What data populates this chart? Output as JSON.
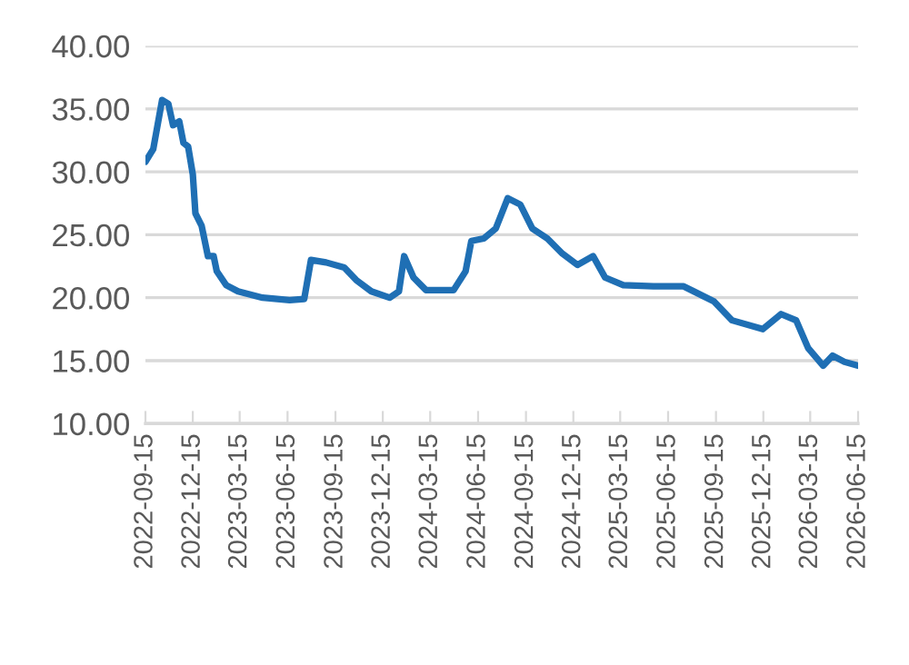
{
  "chart_data": {
    "type": "line",
    "x": [
      "2022-09-15",
      "2022-09-30",
      "2022-10-17",
      "2022-10-29",
      "2022-11-07",
      "2022-11-19",
      "2022-11-27",
      "2022-12-06",
      "2022-12-15",
      "2022-12-20",
      "2023-01-01",
      "2023-01-13",
      "2023-01-24",
      "2023-01-30",
      "2023-02-17",
      "2023-03-12",
      "2023-04-28",
      "2023-06-19",
      "2023-07-17",
      "2023-07-30",
      "2023-08-28",
      "2023-10-02",
      "2023-10-25",
      "2023-11-23",
      "2023-12-28",
      "2024-01-15",
      "2024-01-25",
      "2024-02-12",
      "2024-03-07",
      "2024-04-29",
      "2024-05-22",
      "2024-06-02",
      "2024-06-26",
      "2024-07-19",
      "2024-08-11",
      "2024-09-04",
      "2024-09-27",
      "2024-10-26",
      "2024-11-24",
      "2024-12-23",
      "2025-01-22",
      "2025-02-14",
      "2025-03-21",
      "2025-05-18",
      "2025-07-15",
      "2025-09-11",
      "2025-10-16",
      "2025-12-14",
      "2026-01-18",
      "2026-02-16",
      "2026-03-11",
      "2026-04-09",
      "2026-04-27",
      "2026-05-20",
      "2026-06-15"
    ],
    "series": [
      {
        "color": "#1f6fb4",
        "values": [
          30.8,
          31.8,
          35.7,
          35.4,
          33.7,
          34.0,
          32.3,
          32.0,
          29.8,
          26.7,
          25.7,
          23.3,
          23.3,
          22.1,
          21.0,
          20.5,
          20.0,
          19.8,
          19.9,
          23.0,
          22.8,
          22.4,
          21.4,
          20.5,
          20.0,
          20.5,
          23.3,
          21.6,
          20.6,
          20.6,
          22.1,
          24.5,
          24.7,
          25.5,
          27.9,
          27.4,
          25.5,
          24.7,
          23.5,
          22.6,
          23.3,
          21.6,
          21.0,
          20.9,
          20.9,
          19.7,
          18.2,
          17.5,
          18.7,
          18.2,
          16.0,
          14.6,
          15.4,
          14.9,
          14.6
        ]
      }
    ],
    "xlim": [
      "2022-09-15",
      "2026-06-15"
    ],
    "xticks": [
      "2022-09-15",
      "2022-12-15",
      "2023-03-15",
      "2023-06-15",
      "2023-09-15",
      "2023-12-15",
      "2024-03-15",
      "2024-06-15",
      "2024-09-15",
      "2024-12-15",
      "2025-03-15",
      "2025-06-15",
      "2025-09-15",
      "2025-12-15",
      "2026-03-15",
      "2026-06-15"
    ],
    "ylim": [
      10,
      40
    ],
    "yticks": [
      {
        "value": 10,
        "label": "10.00"
      },
      {
        "value": 15,
        "label": "15.00"
      },
      {
        "value": 20,
        "label": "20.00"
      },
      {
        "value": 25,
        "label": "25.00"
      },
      {
        "value": 30,
        "label": "30.00"
      },
      {
        "value": 35,
        "label": "35.00"
      },
      {
        "value": 40,
        "label": "40.00"
      }
    ],
    "grid": "y",
    "line_style": "solid",
    "legend": false
  }
}
